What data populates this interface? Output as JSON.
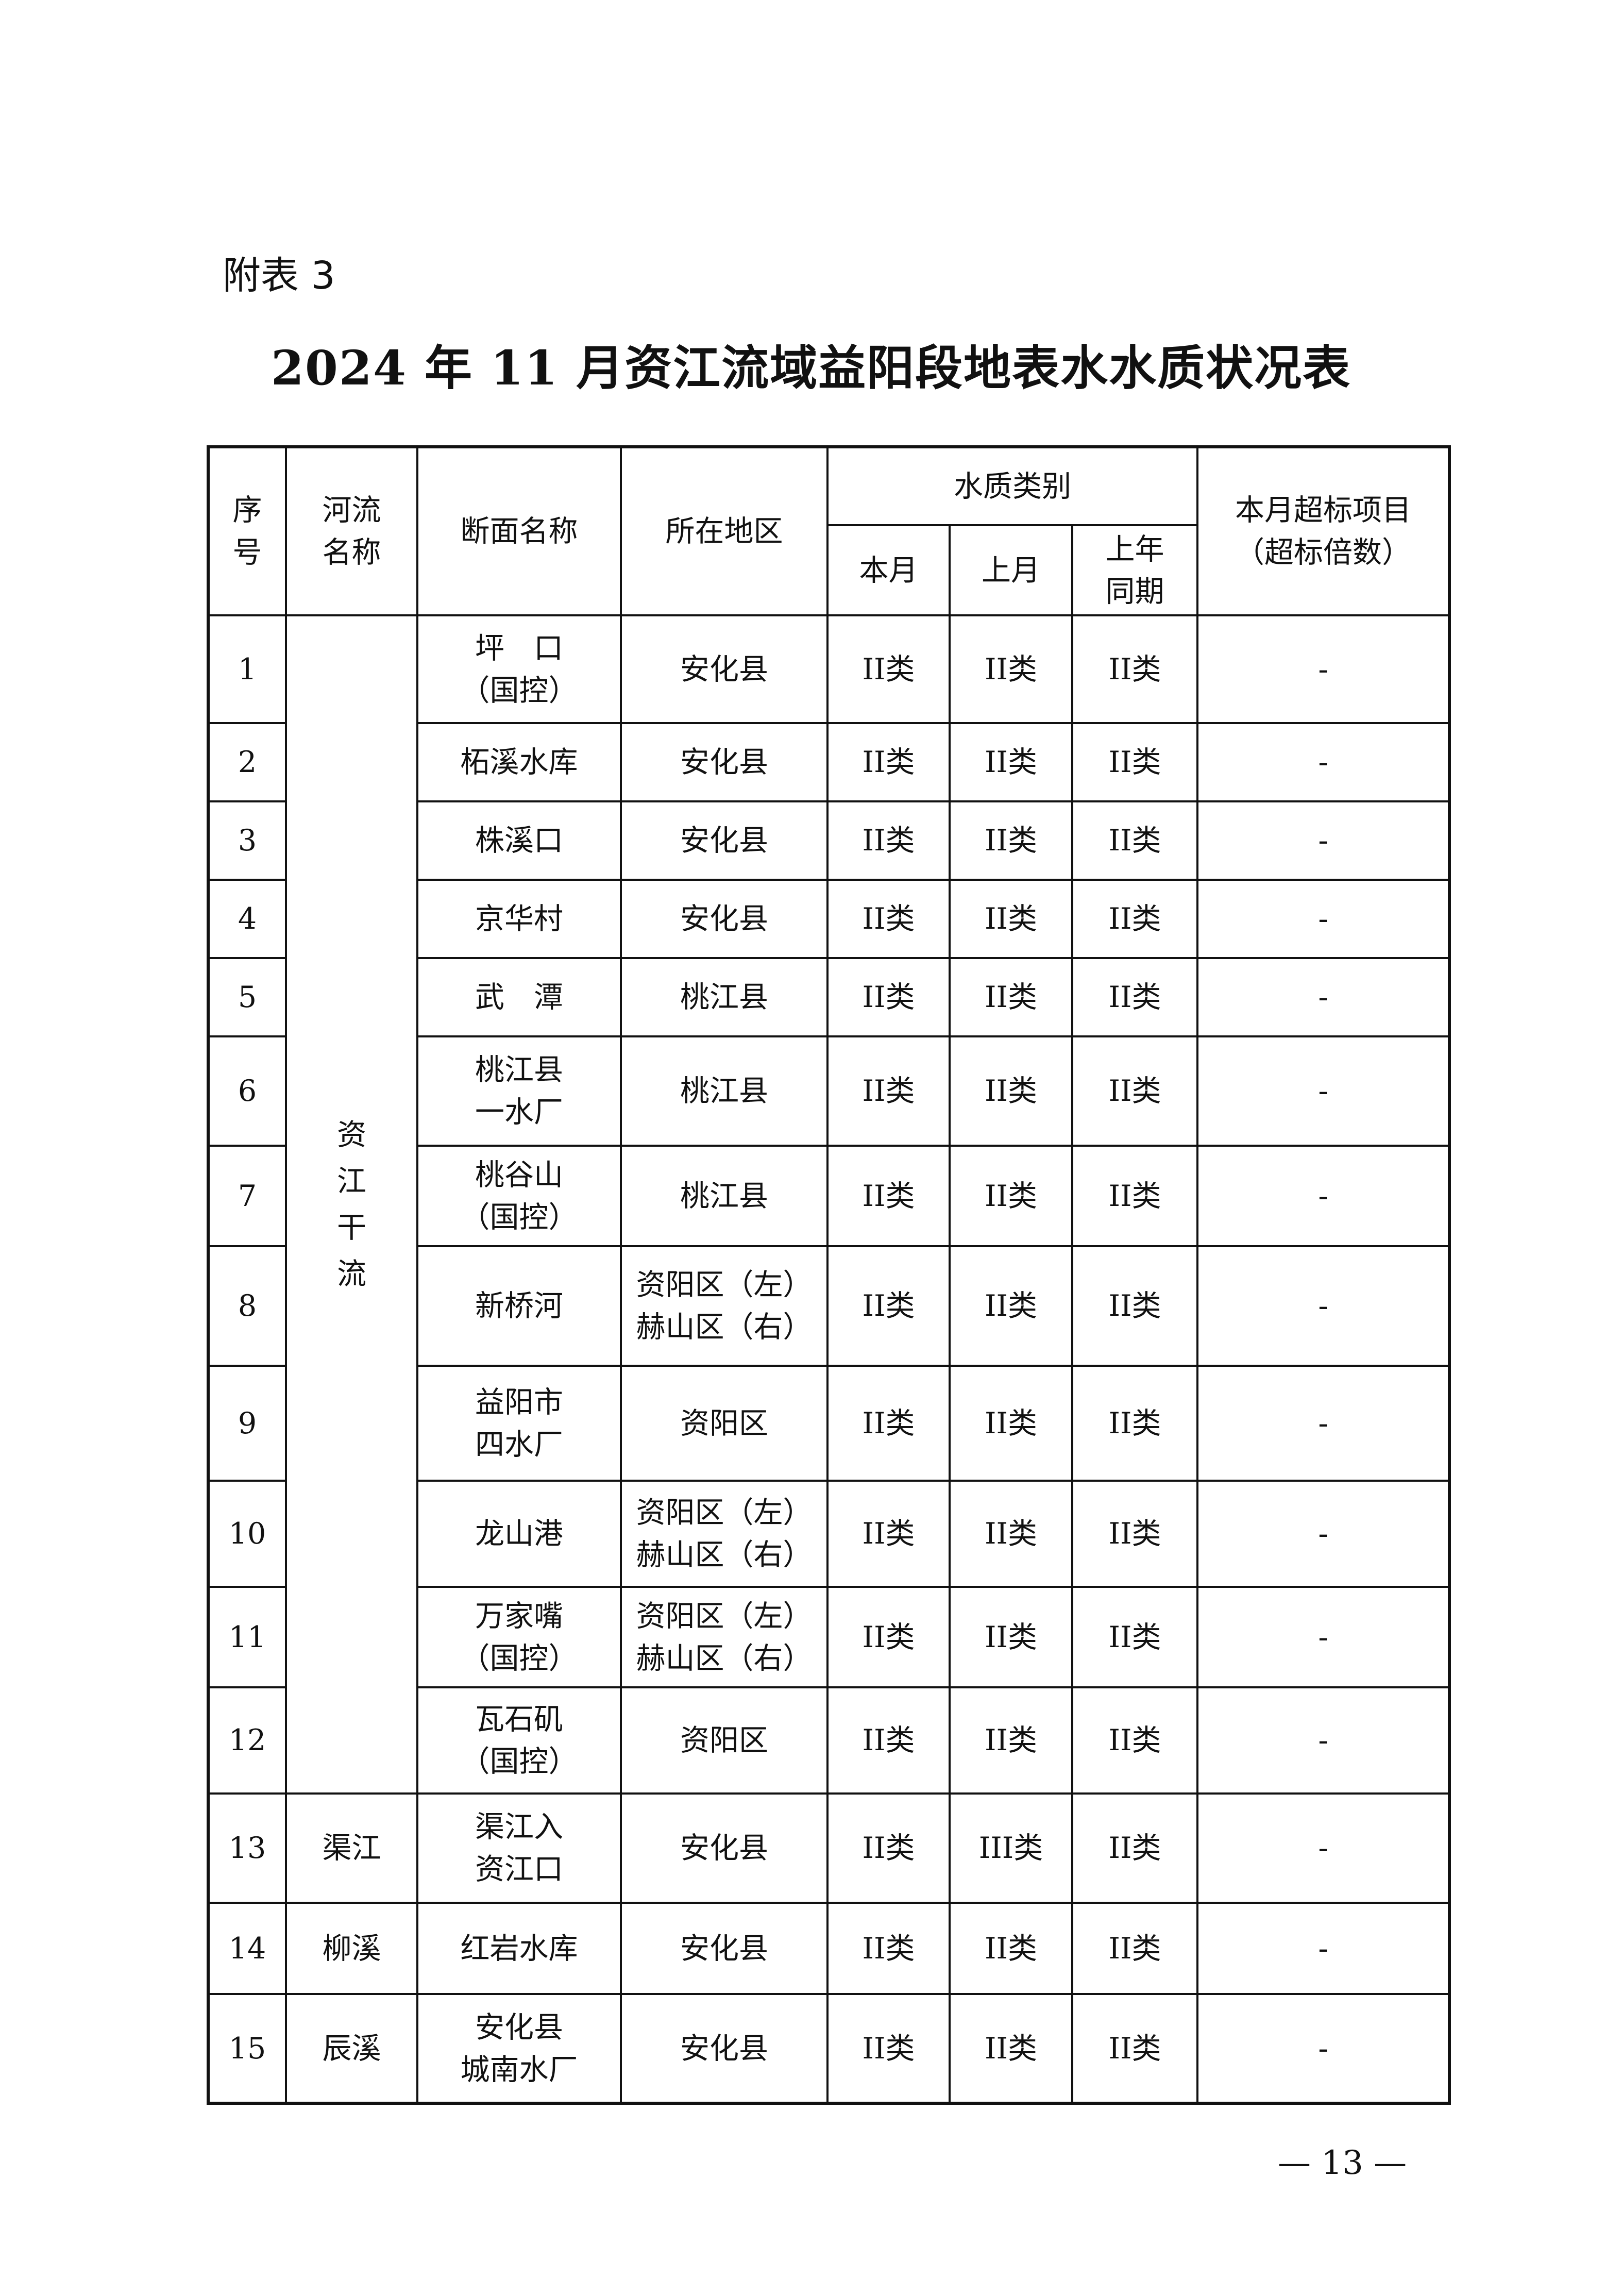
{
  "appendix_label": "附表 3",
  "title": "2024 年 11 月资江流域益阳段地表水水质状况表",
  "headers": {
    "seq": "序\n号",
    "river": "河流\n名称",
    "section": "断面名称",
    "region": "所在地区",
    "quality_group": "水质类别",
    "this_month": "本月",
    "last_month": "上月",
    "last_year": "上年\n同期",
    "exceed": "本月超标项目\n（超标倍数）"
  },
  "river_groups": {
    "zijiang": "资\n江\n干\n流"
  },
  "rows": [
    {
      "seq": "1",
      "river": "资\n江\n干\n流",
      "section": "坪　口\n（国控）",
      "region": "安化县",
      "this": "II类",
      "last": "II类",
      "year": "II类",
      "exceed": "-"
    },
    {
      "seq": "2",
      "section": "柘溪水库",
      "region": "安化县",
      "this": "II类",
      "last": "II类",
      "year": "II类",
      "exceed": "-"
    },
    {
      "seq": "3",
      "section": "株溪口",
      "region": "安化县",
      "this": "II类",
      "last": "II类",
      "year": "II类",
      "exceed": "-"
    },
    {
      "seq": "4",
      "section": "京华村",
      "region": "安化县",
      "this": "II类",
      "last": "II类",
      "year": "II类",
      "exceed": "-"
    },
    {
      "seq": "5",
      "section": "武　潭",
      "region": "桃江县",
      "this": "II类",
      "last": "II类",
      "year": "II类",
      "exceed": "-"
    },
    {
      "seq": "6",
      "section": "桃江县\n一水厂",
      "region": "桃江县",
      "this": "II类",
      "last": "II类",
      "year": "II类",
      "exceed": "-"
    },
    {
      "seq": "7",
      "section": "桃谷山\n（国控）",
      "region": "桃江县",
      "this": "II类",
      "last": "II类",
      "year": "II类",
      "exceed": "-"
    },
    {
      "seq": "8",
      "section": "新桥河",
      "region": "资阳区（左）\n赫山区（右）",
      "this": "II类",
      "last": "II类",
      "year": "II类",
      "exceed": "-"
    },
    {
      "seq": "9",
      "section": "益阳市\n四水厂",
      "region": "资阳区",
      "this": "II类",
      "last": "II类",
      "year": "II类",
      "exceed": "-"
    },
    {
      "seq": "10",
      "section": "龙山港",
      "region": "资阳区（左）\n赫山区（右）",
      "this": "II类",
      "last": "II类",
      "year": "II类",
      "exceed": "-"
    },
    {
      "seq": "11",
      "section": "万家嘴\n（国控）",
      "region": "资阳区（左）\n赫山区（右）",
      "this": "II类",
      "last": "II类",
      "year": "II类",
      "exceed": "-"
    },
    {
      "seq": "12",
      "section": "瓦石矶\n（国控）",
      "region": "资阳区",
      "this": "II类",
      "last": "II类",
      "year": "II类",
      "exceed": "-"
    },
    {
      "seq": "13",
      "river": "渠江",
      "section": "渠江入\n资江口",
      "region": "安化县",
      "this": "II类",
      "last": "III类",
      "year": "II类",
      "exceed": "-"
    },
    {
      "seq": "14",
      "river": "柳溪",
      "section": "红岩水库",
      "region": "安化县",
      "this": "II类",
      "last": "II类",
      "year": "II类",
      "exceed": "-"
    },
    {
      "seq": "15",
      "river": "辰溪",
      "section": "安化县\n城南水厂",
      "region": "安化县",
      "this": "II类",
      "last": "II类",
      "year": "II类",
      "exceed": "-"
    }
  ],
  "page_number": "— 13 —"
}
